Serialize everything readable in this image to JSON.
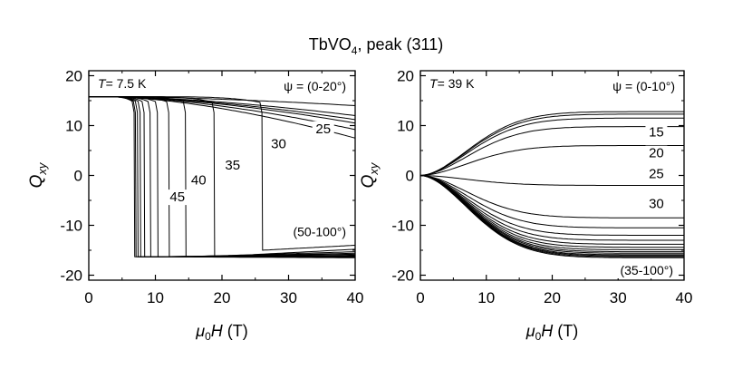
{
  "title_main": "TbVO",
  "title_sub": "4",
  "title_rest": ", peak (311)",
  "chart_data": [
    {
      "type": "line",
      "panel": "left",
      "temperature_label_italic": "T",
      "temperature_label_value": "= 7.5 K",
      "angle_range_top": "ψ = (0-20°)",
      "angle_range_bottom": "(50-100°)",
      "xlabel_mu": "μ",
      "xlabel_sub": "0",
      "xlabel_H": "H",
      "xlabel_unit": " (T)",
      "ylabel_Q": "Q",
      "ylabel_sub": "xy",
      "xlim": [
        0,
        40
      ],
      "ylim": [
        -21,
        21
      ],
      "xticks": [
        "0",
        "10",
        "20",
        "30",
        "40"
      ],
      "yticks": [
        "20",
        "10",
        "0",
        "-10",
        "-20"
      ],
      "xtick_values": [
        0,
        10,
        20,
        30,
        40
      ],
      "ytick_values": [
        20,
        10,
        0,
        -10,
        -20
      ],
      "curve_labels": [
        {
          "text": "25",
          "x": 35.2,
          "y": 8.5
        },
        {
          "text": "30",
          "x": 28.5,
          "y": 5.5
        },
        {
          "text": "35",
          "x": 21.6,
          "y": 1.2
        },
        {
          "text": "40",
          "x": 16.5,
          "y": -1.8
        },
        {
          "text": "45",
          "x": 13.3,
          "y": -5.2
        }
      ],
      "series": [
        {
          "type": "flat",
          "end": 14.0
        },
        {
          "type": "flat",
          "end": 12.0
        },
        {
          "type": "flat",
          "end": 11.2
        },
        {
          "type": "flat",
          "end": 10.5
        },
        {
          "type": "flat",
          "end": 9.2
        },
        {
          "type": "flat",
          "end": 7.5
        },
        {
          "type": "switch",
          "hc": 26.0,
          "low_start": -15.0,
          "low_end": -14.0
        },
        {
          "type": "switch",
          "hc": 18.8,
          "low_start": -16.3,
          "low_end": -14.8
        },
        {
          "type": "switch",
          "hc": 14.5,
          "low_start": -16.3,
          "low_end": -15.3
        },
        {
          "type": "switch",
          "hc": 12.0,
          "low_start": -16.3,
          "low_end": -15.6
        },
        {
          "type": "switch",
          "hc": 10.3,
          "low_start": -16.3,
          "low_end": -15.8
        },
        {
          "type": "switch",
          "hc": 9.2,
          "low_start": -16.3,
          "low_end": -16.0
        },
        {
          "type": "switch",
          "hc": 8.3,
          "low_start": -16.3,
          "low_end": -16.1
        },
        {
          "type": "switch",
          "hc": 7.7,
          "low_start": -16.3,
          "low_end": -16.2
        },
        {
          "type": "switch",
          "hc": 7.3,
          "low_start": -16.3,
          "low_end": -16.3
        },
        {
          "type": "switch",
          "hc": 7.0,
          "low_start": -16.3,
          "low_end": -16.4
        },
        {
          "type": "switch",
          "hc": 6.8,
          "low_start": -16.3,
          "low_end": -16.5
        }
      ]
    },
    {
      "type": "line",
      "panel": "right",
      "temperature_label_italic": "T",
      "temperature_label_value": "= 39 K",
      "angle_range_top": "ψ = (0-10°)",
      "angle_range_bottom": "(35-100°)",
      "xlabel_mu": "μ",
      "xlabel_sub": "0",
      "xlabel_H": "H",
      "xlabel_unit": " (T)",
      "ylabel_Q": "Q",
      "ylabel_sub": "xy",
      "xlim": [
        0,
        40
      ],
      "ylim": [
        -21,
        21
      ],
      "xticks": [
        "0",
        "10",
        "20",
        "30",
        "40"
      ],
      "yticks": [
        "20",
        "10",
        "0",
        "-10",
        "-20"
      ],
      "xtick_values": [
        0,
        10,
        20,
        30,
        40
      ],
      "ytick_values": [
        20,
        10,
        0,
        -10,
        -20
      ],
      "curve_labels": [
        {
          "text": "15",
          "x": 35.8,
          "y": 7.8
        },
        {
          "text": "20",
          "x": 35.8,
          "y": 3.6
        },
        {
          "text": "25",
          "x": 35.8,
          "y": -0.5
        },
        {
          "text": "30",
          "x": 35.8,
          "y": -6.5
        }
      ],
      "saturation_values": [
        12.8,
        12.3,
        11.5,
        9.8,
        6.0,
        -2.0,
        -8.5,
        -10.5,
        -12.0,
        -13.0,
        -13.8,
        -14.4,
        -14.9,
        -15.3,
        -15.6,
        -15.9,
        -16.1,
        -16.3,
        -16.5
      ]
    }
  ]
}
